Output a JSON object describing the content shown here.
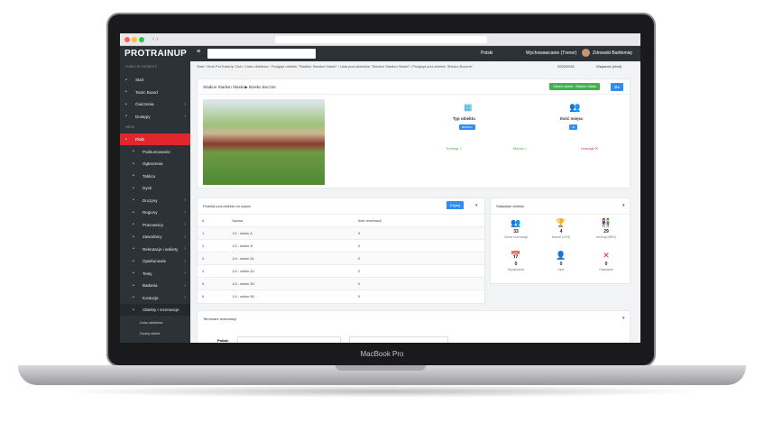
{
  "device": {
    "label": "MacBook Pro"
  },
  "header": {
    "logo": "PROTRAINUP",
    "language": "Polski",
    "club": "Wychowawcanie (Trener)",
    "user": "Zdrowski Bartłomiej",
    "season": "2020/2021",
    "support": "Wsparcie (chat)"
  },
  "sidebar": {
    "section1": "FUNKCJE OSOBISTE",
    "personal": [
      {
        "label": "Start",
        "icon": "home-icon"
      },
      {
        "label": "Tactic Board",
        "icon": "board-icon"
      },
      {
        "label": "Ćwiczenia",
        "icon": "exercise-icon",
        "chev": true
      },
      {
        "label": "Dostępy",
        "icon": "trophy-icon",
        "chev": true
      }
    ],
    "section2": "MENU",
    "club": "Klub",
    "club_items": [
      {
        "label": "Podsumowanie"
      },
      {
        "label": "Ogłoszenia"
      },
      {
        "label": "Tablica"
      },
      {
        "label": "Dysk"
      },
      {
        "label": "Drużyny",
        "chev": true
      },
      {
        "label": "Regiony",
        "chev": true
      },
      {
        "label": "Pracownicy",
        "chev": true
      },
      {
        "label": "Zawodnicy",
        "chev": true
      },
      {
        "label": "Rekrutacje i ankiety",
        "chev": true
      },
      {
        "label": "Opiekunowie",
        "chev": true
      },
      {
        "label": "Testy",
        "chev": true
      },
      {
        "label": "Badania",
        "chev": true
      },
      {
        "label": "Kontuzje",
        "chev": true
      }
    ],
    "objects": "Obiekty i rezerwacje",
    "object_links": [
      "Lista obiektów",
      "Dodaj obiekt"
    ]
  },
  "breadcrumb": [
    "Start",
    "Klub ProTrainUp Club",
    "Lista obiektów",
    "Podgląd obiektu \"Stadion Stadion Slaski\"",
    "Lista pod-obiektów \"Stadion Stadion Slaski\"",
    "Podgląd pod-obiektu \"Boisko Boczne\""
  ],
  "object": {
    "title": "Stadion Stadion Slaski ▶ Boisko Boczne",
    "parent_button": "Otwórz obiekt - Stadion Slaski",
    "type_label": "Typ obiektu",
    "type_badge": "BOISKO",
    "capacity_label": "Ilość miejsc",
    "capacity_badge": "44",
    "trainings": "Treningi ✓",
    "matches": "Mecze ✓",
    "licenses": "Licencje ✕"
  },
  "parts": {
    "title": "Podział pod-obiektu na części",
    "edit": "Edytuj",
    "columns": [
      "#",
      "Nazwa",
      "Ilość rezerwacji"
    ],
    "rows": [
      [
        "1",
        "1/2 - sektor A",
        "3"
      ],
      [
        "2",
        "1/2 - sektor B",
        "0"
      ],
      [
        "3",
        "1/4 - sektor A1",
        "0"
      ],
      [
        "4",
        "1/4 - sektor A2",
        "0"
      ],
      [
        "5",
        "1/4 - sektor B1",
        "0"
      ],
      [
        "6",
        "1/4 - sektor B2",
        "0"
      ]
    ]
  },
  "stats": {
    "title": "Statystyki obiektu",
    "items": [
      {
        "value": "33",
        "label": "Suma rezerwacji",
        "icon": "group-icon",
        "color": "#27a9d6"
      },
      {
        "value": "4",
        "label": "Mecze (12%)",
        "icon": "trophy-icon",
        "color": "#2f8ef0"
      },
      {
        "value": "29",
        "label": "treningi (88%)",
        "icon": "people-icon",
        "color": "#4caf50"
      },
      {
        "value": "0",
        "label": "Wydarzenia",
        "icon": "calendar-icon",
        "color": "#27a9d6"
      },
      {
        "value": "0",
        "label": "Inne",
        "icon": "person-icon",
        "color": "#2f8ef0"
      },
      {
        "value": "0",
        "label": "Odwołane",
        "icon": "close-icon",
        "color": "#e3262b"
      }
    ]
  },
  "schedule": {
    "title": "Terminarz rezerwacji",
    "field_label": "Pokaż:"
  }
}
